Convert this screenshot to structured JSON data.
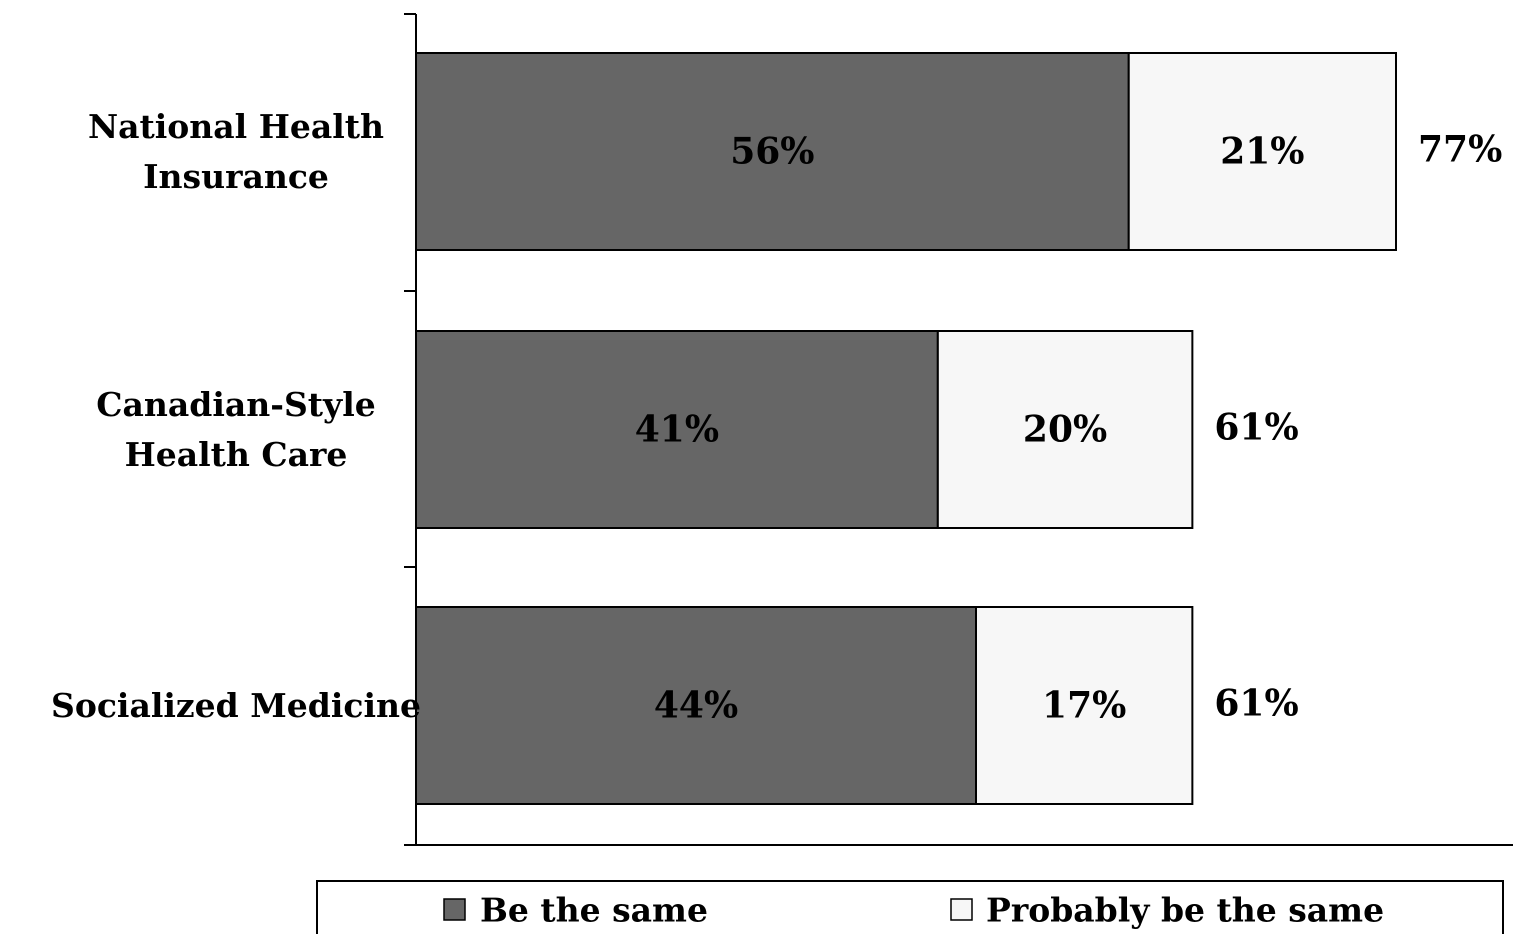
{
  "chart_data": {
    "type": "bar",
    "orientation": "horizontal",
    "stacked": true,
    "categories": [
      [
        "National Health",
        "Insurance"
      ],
      [
        "Canadian-Style",
        "Health Care"
      ],
      [
        "Socialized Medicine"
      ]
    ],
    "series": [
      {
        "name": "Be the same",
        "values": [
          56,
          41,
          44
        ],
        "labels": [
          "56%",
          "41%",
          "44%"
        ],
        "color": "#666666"
      },
      {
        "name": "Probably be the same",
        "values": [
          21,
          20,
          17
        ],
        "labels": [
          "21%",
          "20%",
          "17%"
        ],
        "color": "#f7f7f7"
      }
    ],
    "totals": [
      77,
      61,
      61
    ],
    "total_labels": [
      "77%",
      "61%",
      "61%"
    ],
    "xlim": [
      0,
      86
    ],
    "grid": false,
    "legend_position": "bottom"
  }
}
